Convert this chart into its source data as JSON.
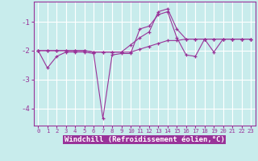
{
  "xlabel": "Windchill (Refroidissement éolien,°C)",
  "background_color": "#c8ecec",
  "grid_color": "#aadddd",
  "line_color": "#993399",
  "x_hours": [
    0,
    1,
    2,
    3,
    4,
    5,
    6,
    7,
    8,
    9,
    10,
    11,
    12,
    13,
    14,
    15,
    16,
    17,
    18,
    19,
    20,
    21,
    22,
    23
  ],
  "series1": [
    -2.0,
    -2.0,
    -2.0,
    -2.0,
    -2.0,
    -2.0,
    -2.05,
    -2.05,
    -2.05,
    -2.05,
    -2.05,
    -1.95,
    -1.85,
    -1.75,
    -1.65,
    -1.65,
    -1.6,
    -1.6,
    -1.6,
    -1.6,
    -1.6,
    -1.6,
    -1.6,
    -1.6
  ],
  "series2": [
    -2.0,
    -2.6,
    -2.2,
    -2.05,
    -2.05,
    -2.05,
    -2.1,
    -4.35,
    -2.15,
    -2.1,
    -2.1,
    -1.25,
    -1.15,
    -0.75,
    -0.65,
    -1.55,
    -2.15,
    -2.2,
    -1.6,
    -2.05,
    -1.6,
    -1.6,
    -1.6,
    -1.6
  ],
  "series3": [
    -2.0,
    -2.0,
    -2.0,
    -2.0,
    -2.0,
    -2.0,
    -2.05,
    -2.05,
    -2.05,
    -2.05,
    -1.8,
    -1.55,
    -1.35,
    -0.65,
    -0.55,
    -1.25,
    -1.6,
    -1.6,
    -1.6,
    -1.6,
    -1.6,
    -1.6,
    -1.6,
    -1.6
  ],
  "ylim": [
    -4.6,
    -0.3
  ],
  "yticks": [
    -4,
    -3,
    -2,
    -1
  ],
  "xlim": [
    -0.5,
    23.5
  ],
  "xlabel_bg": "#993399",
  "xlabel_color": "#ffffff",
  "tick_label_color": "#993399",
  "spine_color": "#993399"
}
